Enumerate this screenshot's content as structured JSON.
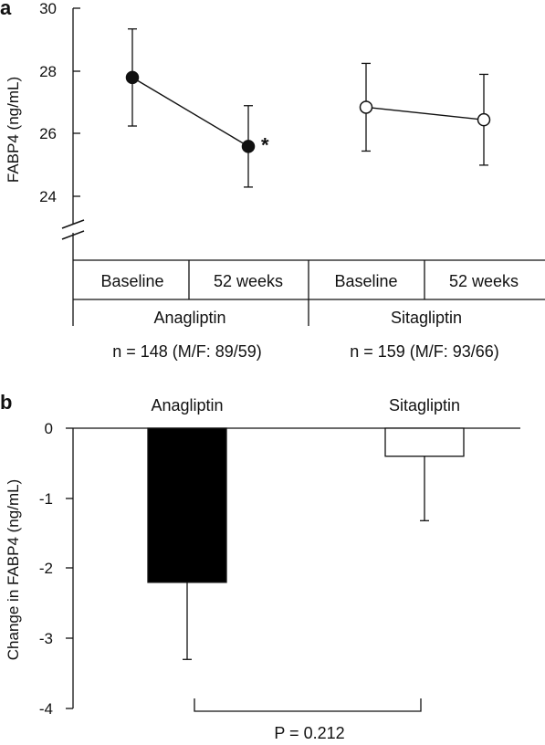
{
  "chart_data": [
    {
      "panel": "a",
      "type": "line",
      "ylabel": "FABP4 (ng/mL)",
      "ylim": [
        22.5,
        30
      ],
      "yticks": [
        "24",
        "26",
        "28",
        "30"
      ],
      "axis_break": true,
      "x_sublabels": [
        "Baseline",
        "52 weeks",
        "Baseline",
        "52 weeks"
      ],
      "groups": [
        {
          "label": "Anagliptin",
          "n_label": "n = 148 (M/F: 89/59)"
        },
        {
          "label": "Sitagliptin",
          "n_label": "n = 159 (M/F: 93/66)"
        }
      ],
      "series": [
        {
          "marker": "filled-circle",
          "x": [
            "Baseline",
            "52 weeks"
          ],
          "values": [
            27.8,
            25.6
          ],
          "error": [
            1.55,
            1.3
          ],
          "annotation": {
            "text": "*",
            "point_index": 1
          }
        },
        {
          "marker": "open-circle",
          "x": [
            "Baseline",
            "52 weeks"
          ],
          "values": [
            26.85,
            26.45
          ],
          "error": [
            1.4,
            1.45
          ]
        }
      ]
    },
    {
      "panel": "b",
      "type": "bar",
      "ylabel": "Change in FABP4 (ng/mL)",
      "ylim": [
        -4,
        0
      ],
      "yticks": [
        "0",
        "-1",
        "-2",
        "-3",
        "-4"
      ],
      "categories": [
        "Anagliptin",
        "Sitagliptin"
      ],
      "values": [
        -2.2,
        -0.4
      ],
      "error": [
        1.1,
        0.92
      ],
      "bar_colors": [
        "#000000",
        "#ffffff"
      ],
      "comparison_label": "P = 0.212"
    }
  ],
  "colors": {
    "ink": "#111111",
    "background": "#ffffff"
  }
}
